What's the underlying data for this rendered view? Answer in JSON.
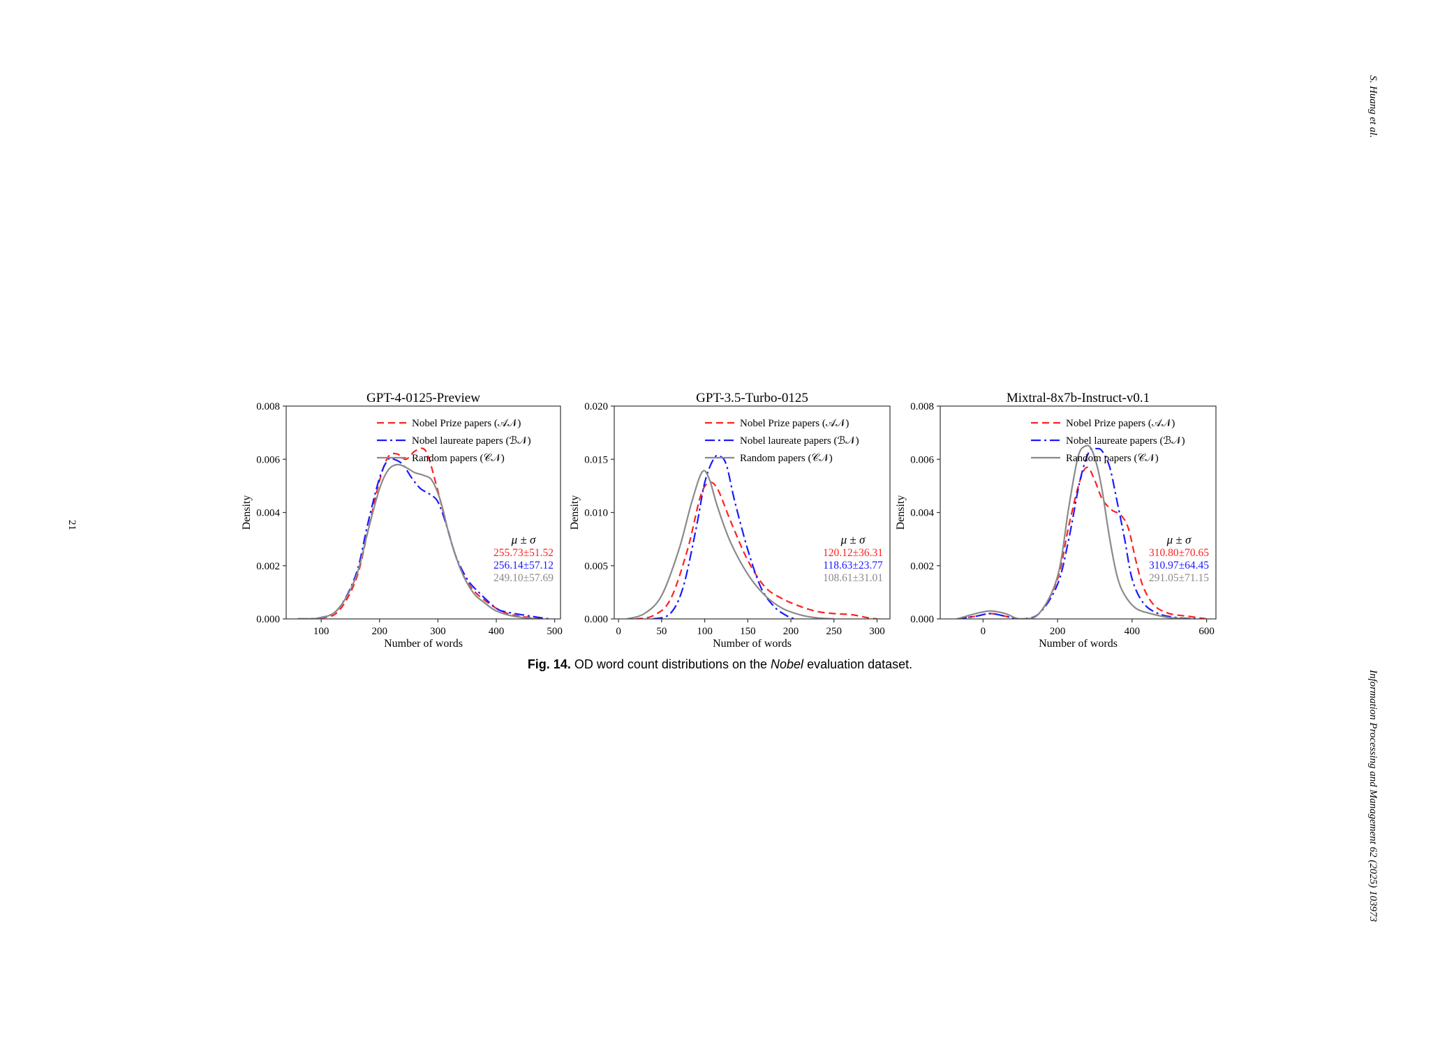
{
  "page": {
    "author": "S. Huang et al.",
    "journal": "Information Processing and Management 62 (2025) 103973",
    "page_number": "21"
  },
  "caption": {
    "label": "Fig. 14.",
    "text_pre": "OD word count distributions on the",
    "dataset": "Nobel",
    "text_post": "evaluation dataset."
  },
  "chart_data": [
    {
      "type": "line",
      "title": "GPT-4-0125-Preview",
      "xlabel": "Number of words",
      "ylabel": "Density",
      "xlim": [
        40,
        510
      ],
      "ylim": [
        0,
        0.008
      ],
      "xticks": [
        100,
        200,
        300,
        400,
        500
      ],
      "yticks": [
        0.0,
        0.002,
        0.004,
        0.006,
        0.008
      ],
      "ytick_labels": [
        "0.000",
        "0.002",
        "0.004",
        "0.006",
        "0.008"
      ],
      "legend_position": "top-right",
      "stats_header": "μ ± σ",
      "series": [
        {
          "name": "Nobel Prize papers (𝒜𝒩)",
          "color": "#ff2020",
          "style": "dashed",
          "x": [
            60,
            100,
            130,
            160,
            180,
            200,
            215,
            230,
            245,
            260,
            275,
            285,
            300,
            320,
            340,
            360,
            380,
            400,
            420,
            440,
            480
          ],
          "y": [
            0,
            3e-05,
            0.0003,
            0.0015,
            0.0033,
            0.0052,
            0.0061,
            0.0062,
            0.006,
            0.0063,
            0.0064,
            0.006,
            0.0048,
            0.0031,
            0.0018,
            0.0011,
            0.0007,
            0.0004,
            0.0002,
            0.0001,
            0
          ],
          "stat": "255.73±51.52"
        },
        {
          "name": "Nobel laureate papers (ℬ𝒩)",
          "color": "#1a1aff",
          "style": "dashdot",
          "x": [
            60,
            100,
            130,
            160,
            180,
            200,
            215,
            225,
            240,
            255,
            270,
            285,
            300,
            315,
            330,
            350,
            370,
            400,
            420,
            460,
            490
          ],
          "y": [
            0,
            5e-05,
            0.0004,
            0.0017,
            0.0036,
            0.0053,
            0.006,
            0.006,
            0.0058,
            0.0053,
            0.0049,
            0.0047,
            0.0044,
            0.0035,
            0.0024,
            0.0015,
            0.001,
            0.0004,
            0.00025,
            0.0001,
            0
          ],
          "stat": "256.14±57.12"
        },
        {
          "name": "Random papers (𝒞𝒩)",
          "color": "#8a8a8a",
          "style": "solid",
          "x": [
            60,
            100,
            130,
            160,
            180,
            200,
            215,
            230,
            245,
            260,
            275,
            290,
            305,
            320,
            340,
            360,
            380,
            400,
            430,
            470
          ],
          "y": [
            0,
            4e-05,
            0.0004,
            0.0016,
            0.0033,
            0.0049,
            0.0056,
            0.0058,
            0.0057,
            0.0055,
            0.0054,
            0.0052,
            0.0044,
            0.0031,
            0.0018,
            0.001,
            0.0006,
            0.0003,
            0.0001,
            0
          ],
          "stat": "249.10±57.69"
        }
      ]
    },
    {
      "type": "line",
      "title": "GPT-3.5-Turbo-0125",
      "xlabel": "Number of words",
      "ylabel": "Density",
      "xlim": [
        -5,
        315
      ],
      "ylim": [
        0,
        0.02
      ],
      "xticks": [
        0,
        50,
        100,
        150,
        200,
        250,
        300
      ],
      "yticks": [
        0.0,
        0.005,
        0.01,
        0.015,
        0.02
      ],
      "ytick_labels": [
        "0.000",
        "0.005",
        "0.010",
        "0.015",
        "0.020"
      ],
      "legend_position": "top-right",
      "stats_header": "μ ± σ",
      "series": [
        {
          "name": "Nobel Prize papers (𝒜𝒩)",
          "color": "#ff2020",
          "style": "dashed",
          "x": [
            20,
            40,
            60,
            80,
            95,
            105,
            115,
            130,
            150,
            170,
            190,
            210,
            230,
            250,
            270,
            290,
            300
          ],
          "y": [
            0,
            0.0003,
            0.0018,
            0.0065,
            0.0115,
            0.0128,
            0.0122,
            0.0092,
            0.0055,
            0.003,
            0.0019,
            0.0012,
            0.0007,
            0.0005,
            0.0004,
            0.0001,
            0
          ],
          "stat": "120.12±36.31"
        },
        {
          "name": "Nobel laureate papers (ℬ𝒩)",
          "color": "#1a1aff",
          "style": "dashdot",
          "x": [
            40,
            60,
            75,
            90,
            100,
            110,
            117,
            125,
            135,
            150,
            165,
            180,
            195,
            205
          ],
          "y": [
            0,
            0.0005,
            0.003,
            0.0085,
            0.0128,
            0.015,
            0.0153,
            0.0145,
            0.011,
            0.0065,
            0.003,
            0.0012,
            0.0003,
            0
          ],
          "stat": "118.63±23.77"
        },
        {
          "name": "Random papers (𝒞𝒩)",
          "color": "#8a8a8a",
          "style": "solid",
          "x": [
            10,
            30,
            50,
            70,
            85,
            97,
            105,
            115,
            130,
            150,
            170,
            190,
            210,
            230,
            250
          ],
          "y": [
            0,
            0.0005,
            0.0022,
            0.0065,
            0.011,
            0.0138,
            0.0132,
            0.0105,
            0.0072,
            0.0042,
            0.0022,
            0.001,
            0.0004,
            0.0001,
            0
          ],
          "stat": "108.61±31.01"
        }
      ]
    },
    {
      "type": "line",
      "title": "Mixtral-8x7b-Instruct-v0.1",
      "xlabel": "Number of words",
      "ylabel": "Density",
      "xlim": [
        -115,
        625
      ],
      "ylim": [
        0,
        0.008
      ],
      "xticks": [
        0,
        200,
        400,
        600
      ],
      "yticks": [
        0.0,
        0.002,
        0.004,
        0.006,
        0.008
      ],
      "ytick_labels": [
        "0.000",
        "0.002",
        "0.004",
        "0.006",
        "0.008"
      ],
      "legend_position": "top-right",
      "stats_header": "μ ± σ",
      "series": [
        {
          "name": "Nobel Prize papers (𝒜𝒩)",
          "color": "#ff2020",
          "style": "dashed",
          "x": [
            -70,
            -20,
            20,
            60,
            100,
            150,
            200,
            230,
            260,
            280,
            300,
            320,
            345,
            370,
            390,
            410,
            430,
            460,
            500,
            550,
            600
          ],
          "y": [
            0,
            0.0001,
            0.0002,
            0.0001,
            0,
            0.0002,
            0.0015,
            0.0035,
            0.0052,
            0.0057,
            0.0052,
            0.0045,
            0.0041,
            0.0039,
            0.0034,
            0.0022,
            0.0012,
            0.0005,
            0.0002,
            0.0001,
            0
          ],
          "stat": "310.80±70.65"
        },
        {
          "name": "Nobel laureate papers (ℬ𝒩)",
          "color": "#1a1aff",
          "style": "dashdot",
          "x": [
            -70,
            -20,
            20,
            60,
            100,
            150,
            200,
            230,
            260,
            285,
            305,
            320,
            340,
            360,
            380,
            400,
            430,
            470,
            520,
            580
          ],
          "y": [
            0,
            0.0001,
            0.0002,
            0.0001,
            0,
            0.0002,
            0.0013,
            0.003,
            0.0052,
            0.0063,
            0.0064,
            0.0063,
            0.0057,
            0.0044,
            0.003,
            0.0015,
            0.0006,
            0.0002,
            5e-05,
            0
          ],
          "stat": "310.97±64.45"
        },
        {
          "name": "Random papers (𝒞𝒩)",
          "color": "#8a8a8a",
          "style": "solid",
          "x": [
            -70,
            -20,
            20,
            60,
            100,
            150,
            200,
            230,
            255,
            275,
            290,
            305,
            320,
            340,
            360,
            380,
            410,
            450,
            500,
            560
          ],
          "y": [
            0,
            0.0002,
            0.0003,
            0.0002,
            0,
            0.0002,
            0.0016,
            0.0042,
            0.0061,
            0.0065,
            0.0064,
            0.0058,
            0.0048,
            0.003,
            0.0016,
            0.0009,
            0.0004,
            0.0002,
            5e-05,
            0
          ],
          "stat": "291.05±71.15"
        }
      ]
    }
  ]
}
